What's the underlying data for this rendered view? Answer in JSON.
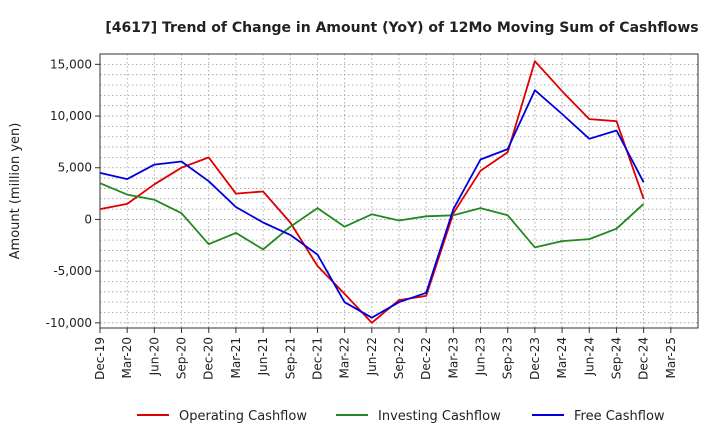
{
  "chart_data": {
    "type": "line",
    "title": "[4617]  Trend of Change in Amount (YoY) of 12Mo Moving Sum of Cashflows",
    "xlabel": "",
    "ylabel": "Amount (million yen)",
    "ylim": [
      -10500,
      16000
    ],
    "yticks": [
      15000,
      10000,
      5000,
      0,
      -5000,
      -10000
    ],
    "ytick_labels": [
      "15,000",
      "10,000",
      "5,000",
      "0",
      "-5,000",
      "-10,000"
    ],
    "categories": [
      "Dec-19",
      "Mar-20",
      "Jun-20",
      "Sep-20",
      "Dec-20",
      "Mar-21",
      "Jun-21",
      "Sep-21",
      "Dec-21",
      "Mar-22",
      "Jun-22",
      "Sep-22",
      "Dec-22",
      "Mar-23",
      "Jun-23",
      "Sep-23",
      "Dec-23",
      "Mar-24",
      "Jun-24",
      "Sep-24",
      "Dec-24",
      "Mar-25"
    ],
    "grid": true,
    "legend_position": "bottom",
    "series": [
      {
        "name": "Operating Cashflow",
        "color": "#dd0000",
        "values": [
          1000,
          1500,
          3400,
          5000,
          6000,
          2500,
          2700,
          -300,
          -4500,
          -7200,
          -10000,
          -7800,
          -7400,
          600,
          4700,
          6500,
          15300,
          12400,
          9700,
          9500,
          2000,
          null
        ]
      },
      {
        "name": "Investing Cashflow",
        "color": "#228822",
        "values": [
          3500,
          2400,
          1900,
          600,
          -2400,
          -1300,
          -2900,
          -700,
          1100,
          -700,
          500,
          -100,
          300,
          400,
          1100,
          400,
          -2700,
          -2100,
          -1900,
          -900,
          1500,
          null
        ]
      },
      {
        "name": "Free Cashflow",
        "color": "#0000dd",
        "values": [
          4500,
          3900,
          5300,
          5600,
          3700,
          1200,
          -300,
          -1500,
          -3400,
          -8000,
          -9500,
          -8000,
          -7100,
          1000,
          5800,
          6800,
          12500,
          10200,
          7800,
          8600,
          3600,
          null
        ]
      }
    ]
  }
}
